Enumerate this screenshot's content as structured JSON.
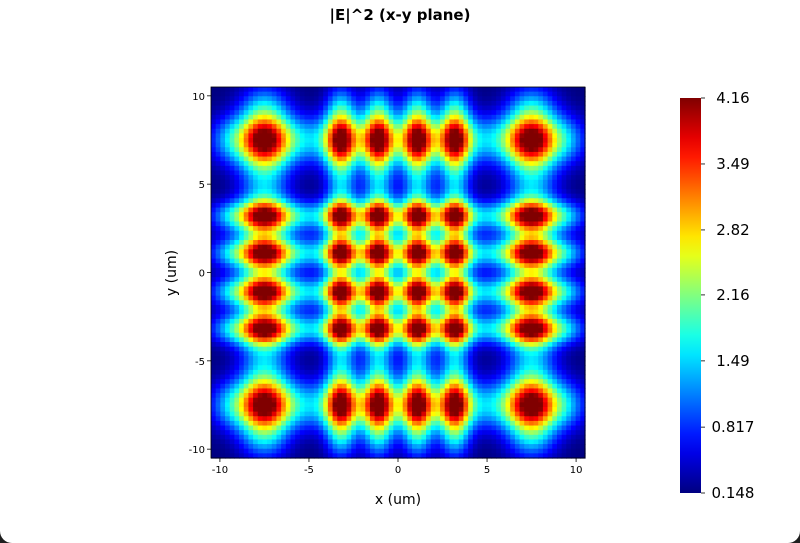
{
  "chart_data": {
    "type": "heatmap",
    "title": "|E|^2 (x-y plane)",
    "xlabel": "x (um)",
    "ylabel": "y (um)",
    "xlim": [
      -10.5,
      10.5
    ],
    "ylim": [
      -10.5,
      10.5
    ],
    "x_ticks": [
      -10,
      -5,
      0,
      5,
      10
    ],
    "x_tick_labels": [
      "-10",
      "-5",
      "0",
      "5",
      "10"
    ],
    "y_ticks": [
      10,
      5,
      0,
      -5,
      -10
    ],
    "y_tick_labels": [
      "10",
      "5",
      "0",
      "-5",
      "-10"
    ],
    "colormap": "jet",
    "grid": false,
    "color_range": [
      0.148,
      4.16
    ],
    "colorbar_ticks": [
      4.16,
      3.49,
      2.82,
      2.16,
      1.49,
      0.817,
      0.148
    ],
    "colorbar_tick_labels": [
      "4.16",
      "3.49",
      "2.82",
      "2.16",
      "1.49",
      "0.817",
      "0.148"
    ],
    "field_line_positions_um": [
      -7.5,
      -3.2,
      -1.1,
      1.1,
      3.2,
      7.5
    ],
    "peak_value": 4.16,
    "min_value": 0.148
  }
}
